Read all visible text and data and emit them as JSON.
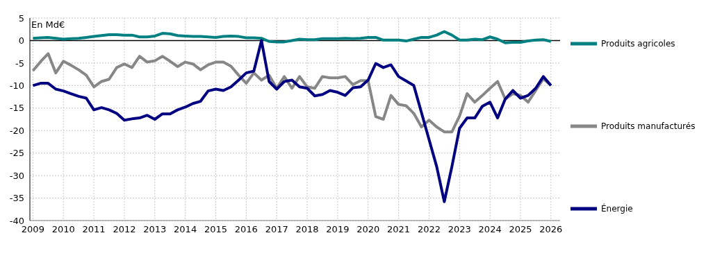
{
  "chart_data": {
    "type": "line",
    "ylabel": "En Md€",
    "x": [
      2009,
      2009.25,
      2009.5,
      2009.75,
      2010,
      2010.25,
      2010.5,
      2010.75,
      2011,
      2011.25,
      2011.5,
      2011.75,
      2012,
      2012.25,
      2012.5,
      2012.75,
      2013,
      2013.25,
      2013.5,
      2013.75,
      2014,
      2014.25,
      2014.5,
      2014.75,
      2015,
      2015.25,
      2015.5,
      2015.75,
      2016,
      2016.25,
      2016.5,
      2016.75,
      2017,
      2017.25,
      2017.5,
      2017.75,
      2018,
      2018.25,
      2018.5,
      2018.75,
      2019,
      2019.25,
      2019.5,
      2019.75,
      2020,
      2020.25,
      2020.5,
      2020.75,
      2021,
      2021.25,
      2021.5,
      2021.75,
      2022,
      2022.25,
      2022.5,
      2022.75,
      2023,
      2023.25,
      2023.5,
      2023.75,
      2024,
      2024.25,
      2024.5,
      2024.75,
      2025,
      2025.25,
      2025.5,
      2025.75,
      2026
    ],
    "series": [
      {
        "name": "Produits agricoles",
        "color": "#008080",
        "values": [
          0.5,
          0.6,
          0.7,
          0.5,
          0.3,
          0.4,
          0.5,
          0.7,
          0.9,
          1.1,
          1.3,
          1.3,
          1.2,
          1.2,
          0.8,
          0.8,
          1.0,
          1.6,
          1.5,
          1.1,
          1.0,
          0.9,
          0.9,
          0.8,
          0.7,
          0.9,
          1.0,
          0.9,
          0.6,
          0.6,
          0.5,
          -0.2,
          -0.3,
          -0.3,
          0.0,
          0.3,
          0.2,
          0.2,
          0.4,
          0.4,
          0.4,
          0.5,
          0.4,
          0.5,
          0.7,
          0.7,
          0.1,
          0.1,
          0.1,
          -0.1,
          0.3,
          0.7,
          0.7,
          1.2,
          2.0,
          1.2,
          0.1,
          0.1,
          0.3,
          0.2,
          0.8,
          0.3,
          -0.5,
          -0.4,
          -0.4,
          -0.1,
          0.1,
          0.2,
          -0.2
        ]
      },
      {
        "name": "Produits manufacturés",
        "color": "#878787",
        "values": [
          -6.7,
          -4.7,
          -2.9,
          -7.2,
          -4.6,
          -5.5,
          -6.5,
          -7.7,
          -10.3,
          -9.1,
          -8.6,
          -6,
          -5.2,
          -6,
          -3.5,
          -4.8,
          -4.5,
          -3.5,
          -4.6,
          -5.8,
          -4.8,
          -5.2,
          -6.5,
          -5.4,
          -4.8,
          -4.8,
          -5.7,
          -7.7,
          -9.5,
          -7.2,
          -8.8,
          -7.7,
          -10.6,
          -8,
          -10.6,
          -8,
          -10.3,
          -10.6,
          -8,
          -8.3,
          -8.3,
          -8,
          -9.8,
          -8.9,
          -8.9,
          -16.9,
          -17.5,
          -12.2,
          -14.2,
          -14.5,
          -16.2,
          -19.2,
          -17.7,
          -19.2,
          -20.3,
          -20.3,
          -16.8,
          -11.8,
          -13.7,
          -12.2,
          -10.6,
          -9.1,
          -13,
          -11.8,
          -12.2,
          -13.7,
          -11.1,
          -8.5,
          -10
        ]
      },
      {
        "name": "Énergie",
        "color": "#000080",
        "values": [
          -10,
          -9.5,
          -9.5,
          -10.8,
          -11.2,
          -11.8,
          -12.4,
          -12.8,
          -15.4,
          -14.9,
          -15.4,
          -16.2,
          -17.7,
          -17.4,
          -17.2,
          -16.6,
          -17.5,
          -16.3,
          -16.3,
          -15.4,
          -14.8,
          -14,
          -13.5,
          -11.2,
          -10.8,
          -11.1,
          -10.3,
          -8.8,
          -7.2,
          -6.8,
          0,
          -9.1,
          -10.8,
          -9.1,
          -8.8,
          -10.3,
          -10.6,
          -12.3,
          -12,
          -11.1,
          -11.5,
          -12.2,
          -10.5,
          -10.3,
          -8.8,
          -5.1,
          -6,
          -5.4,
          -8,
          -9,
          -10,
          -16,
          -22,
          -28,
          -35.8,
          -28,
          -19.5,
          -17.2,
          -17.2,
          -14.6,
          -13.7,
          -17.2,
          -13,
          -11.1,
          -12.8,
          -12.2,
          -10.6,
          -8,
          -10
        ]
      }
    ],
    "xlim": [
      2008.9,
      2026.3
    ],
    "xticks": [
      2009,
      2010,
      2011,
      2012,
      2013,
      2014,
      2015,
      2016,
      2017,
      2018,
      2019,
      2020,
      2021,
      2022,
      2023,
      2024,
      2025,
      2026
    ],
    "ylim": [
      -40,
      5
    ],
    "yticks": [
      -40,
      -35,
      -30,
      -25,
      -20,
      -15,
      -10,
      -5,
      0,
      5
    ],
    "ref_lines": [
      {
        "axis": "y",
        "value": 0,
        "color": "#000000"
      }
    ],
    "grid": true,
    "legend": "right",
    "marker": "none",
    "line_style": "solid"
  }
}
